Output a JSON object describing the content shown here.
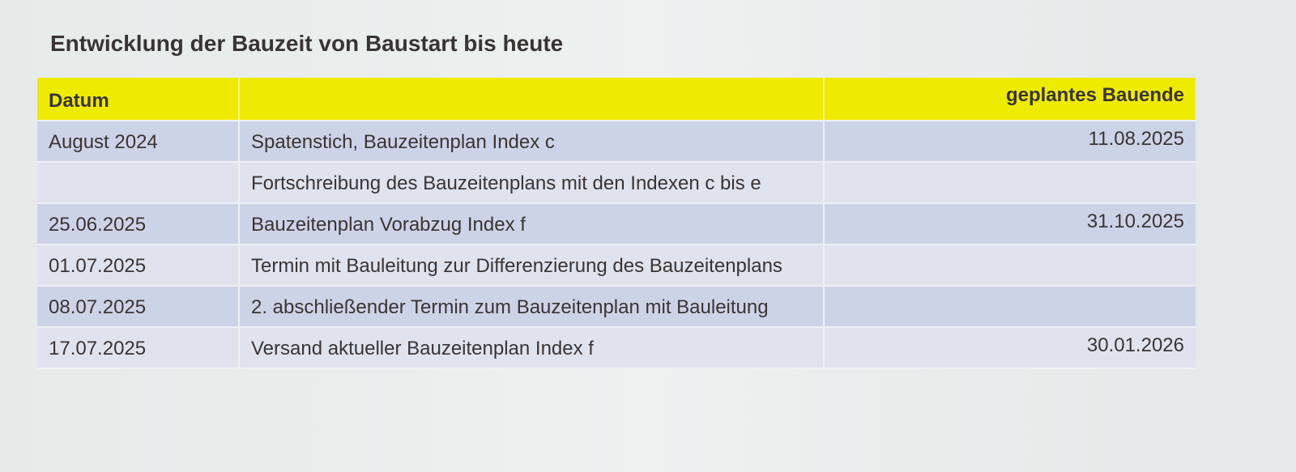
{
  "title": "Entwicklung der Bauzeit von Baustart bis heute",
  "table": {
    "header": {
      "date": "Datum",
      "end": "geplantes Bauende"
    },
    "rows": [
      {
        "date": "August 2024",
        "event": "Spatenstich, Bauzeitenplan Index c",
        "end": "11.08.2025"
      },
      {
        "event": "Fortschreibung des Bauzeitenplans mit den Indexen c bis e"
      },
      {
        "date": "25.06.2025",
        "event": "Bauzeitenplan Vorabzug Index f",
        "end": "31.10.2025"
      },
      {
        "date": "01.07.2025",
        "event": "Termin mit Bauleitung zur Differenzierung des Bauzeitenplans"
      },
      {
        "date": "08.07.2025",
        "event": "2. abschließender Termin zum Bauzeitenplan mit Bauleitung"
      },
      {
        "date": "17.07.2025",
        "event": "Versand aktueller Bauzeitenplan Index f",
        "end": "30.01.2026"
      }
    ]
  }
}
